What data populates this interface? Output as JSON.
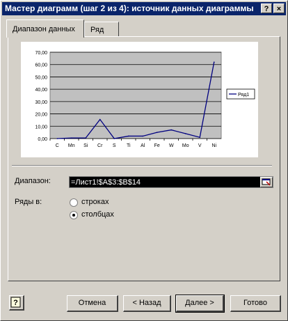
{
  "window": {
    "title": "Мастер диаграмм (шаг 2 из 4): источник данных диаграммы",
    "help_glyph": "?",
    "close_glyph": "×"
  },
  "tabs": [
    {
      "label": "Диапазон данных",
      "active": true
    },
    {
      "label": "Ряд",
      "active": false
    }
  ],
  "chart_data": {
    "type": "line",
    "categories": [
      "C",
      "Mn",
      "Si",
      "Cr",
      "S",
      "Ti",
      "Al",
      "Fe",
      "W",
      "Mo",
      "V",
      "Ni"
    ],
    "series": [
      {
        "name": "Ряд1",
        "values": [
          0,
          0.5,
          0.5,
          15.5,
          0,
          2,
          2,
          5,
          7,
          4,
          1,
          62
        ],
        "color": "#000080"
      }
    ],
    "y_ticks": [
      "0,00",
      "10,00",
      "20,00",
      "30,00",
      "40,00",
      "50,00",
      "60,00",
      "70,00"
    ],
    "ylim": [
      0,
      70
    ],
    "grid": true,
    "legend": "right",
    "plot_bg": "#c0c0c0"
  },
  "form": {
    "range_label": "Диапазон:",
    "range_value": "=Лист1!$A$3:$B$14",
    "series_in_label": "Ряды в:",
    "options": [
      {
        "label": "строках",
        "selected": false
      },
      {
        "label": "столбцах",
        "selected": true
      }
    ]
  },
  "buttons": {
    "cancel": "Отмена",
    "back": "< Назад",
    "next": "Далее >",
    "finish": "Готово"
  }
}
